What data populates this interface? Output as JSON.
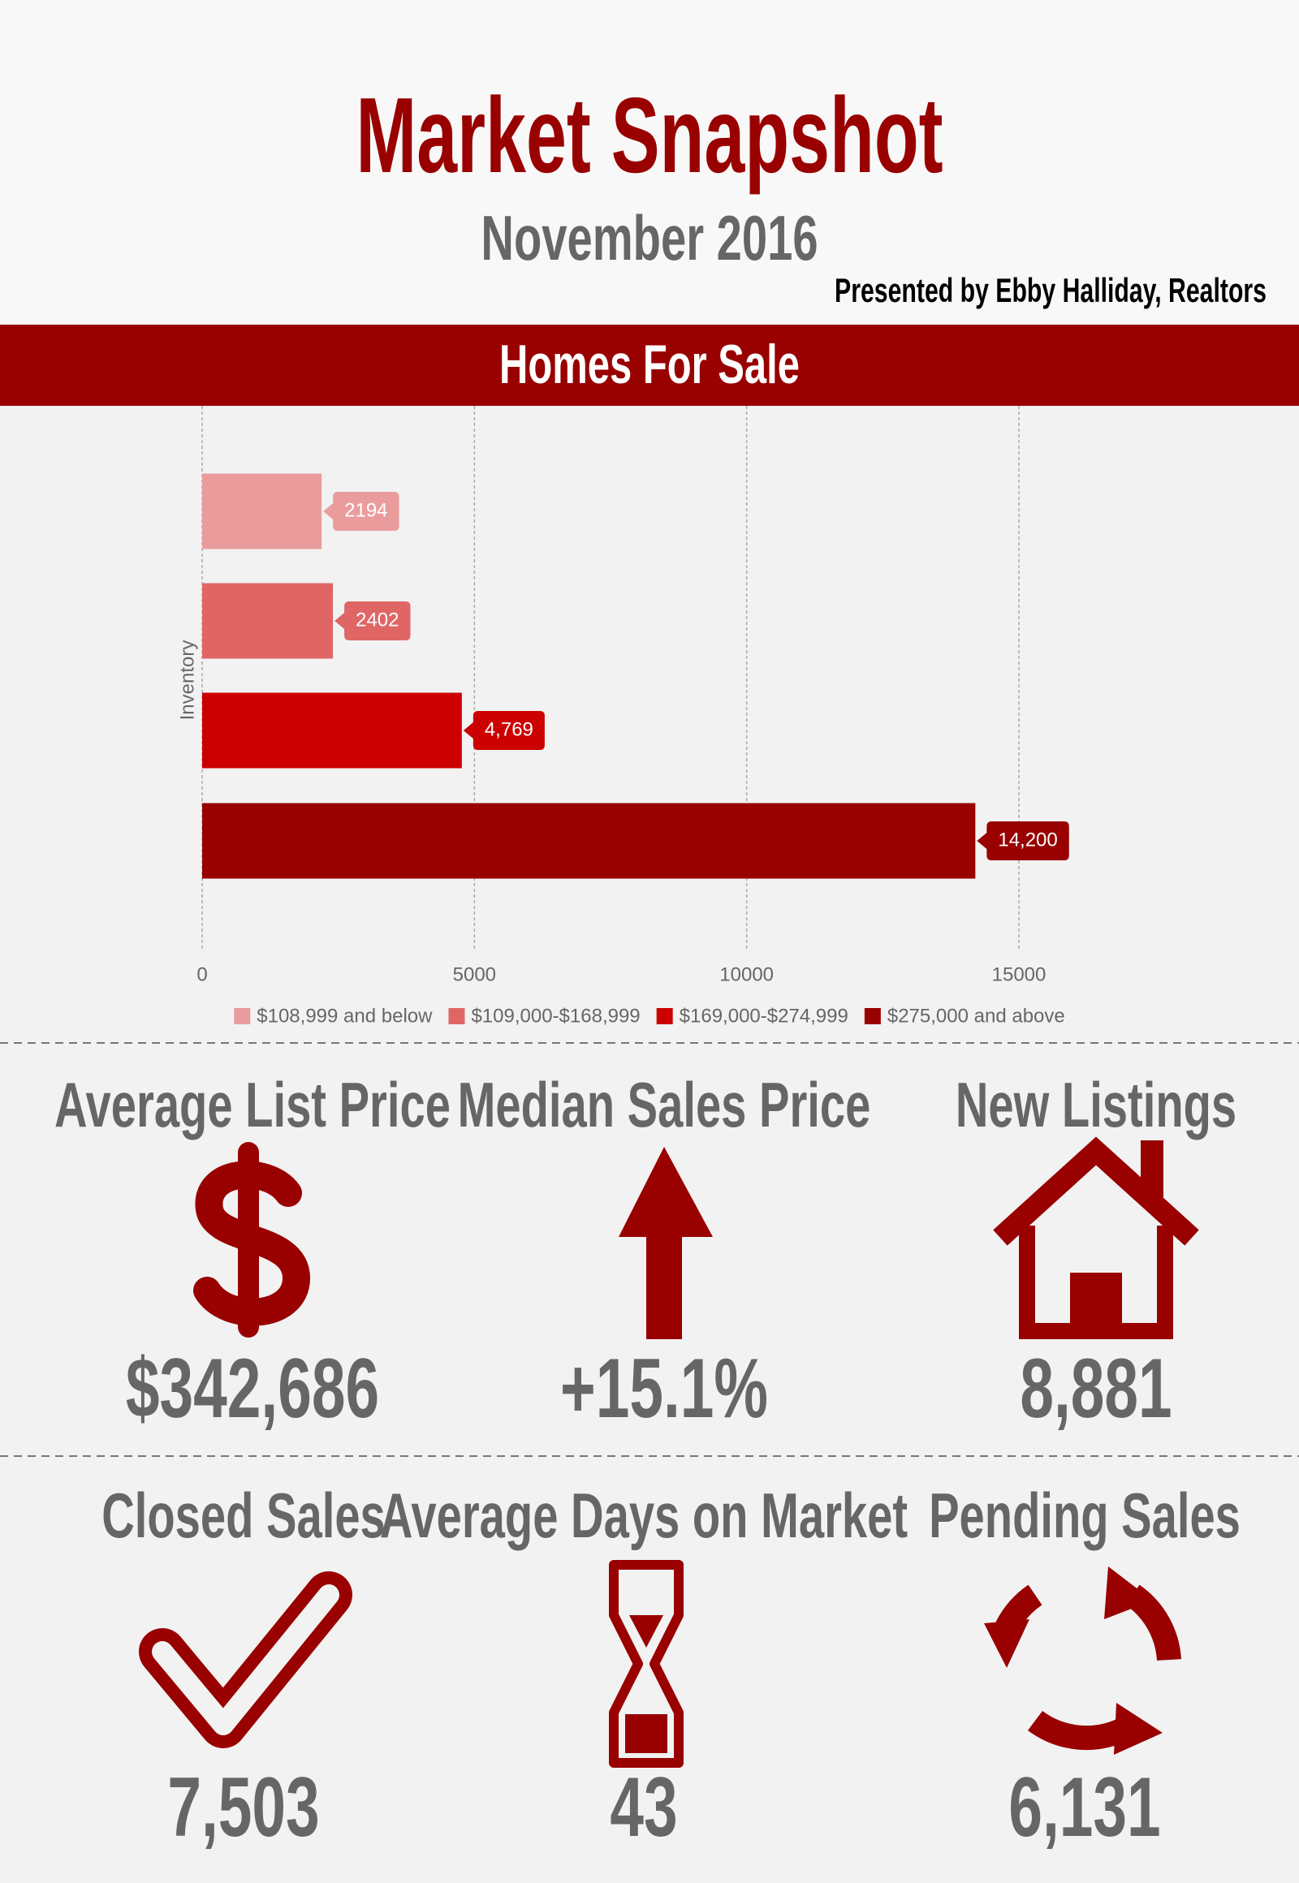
{
  "header": {
    "title": "Market Snapshot",
    "subtitle": "November 2016",
    "presenter": "Presented by Ebby Halliday, Realtors"
  },
  "section_title": "Homes For Sale",
  "chart_data": {
    "type": "bar",
    "orientation": "horizontal",
    "y_label": "Inventory",
    "xlim": [
      0,
      20000
    ],
    "xticks": [
      0,
      5000,
      10000,
      15000
    ],
    "grid": true,
    "legend": "bottom",
    "series": [
      {
        "name": "$108,999 and below",
        "color": "#ea9c9c",
        "values": [
          2194
        ]
      },
      {
        "name": "$109,000-$168,999",
        "color": "#e06666",
        "values": [
          2402
        ]
      },
      {
        "name": "$169,000-$274,999",
        "color": "#cc0000",
        "values": [
          4769
        ],
        "value_labels": [
          "4,769"
        ]
      },
      {
        "name": "$275,000 and above",
        "color": "#990000",
        "values": [
          14200
        ],
        "value_labels": [
          "14,200"
        ]
      }
    ]
  },
  "stats": [
    {
      "title": "Average List Price",
      "value": "$342,686"
    },
    {
      "title": "Median Sales Price",
      "value": "+15.1%"
    },
    {
      "title": "New Listings",
      "value": "8,881"
    },
    {
      "title": "Closed Sales",
      "value": "7,503"
    },
    {
      "title": "Average Days on Market",
      "value": "43"
    },
    {
      "title": "Pending Sales",
      "value": "6,131"
    }
  ]
}
